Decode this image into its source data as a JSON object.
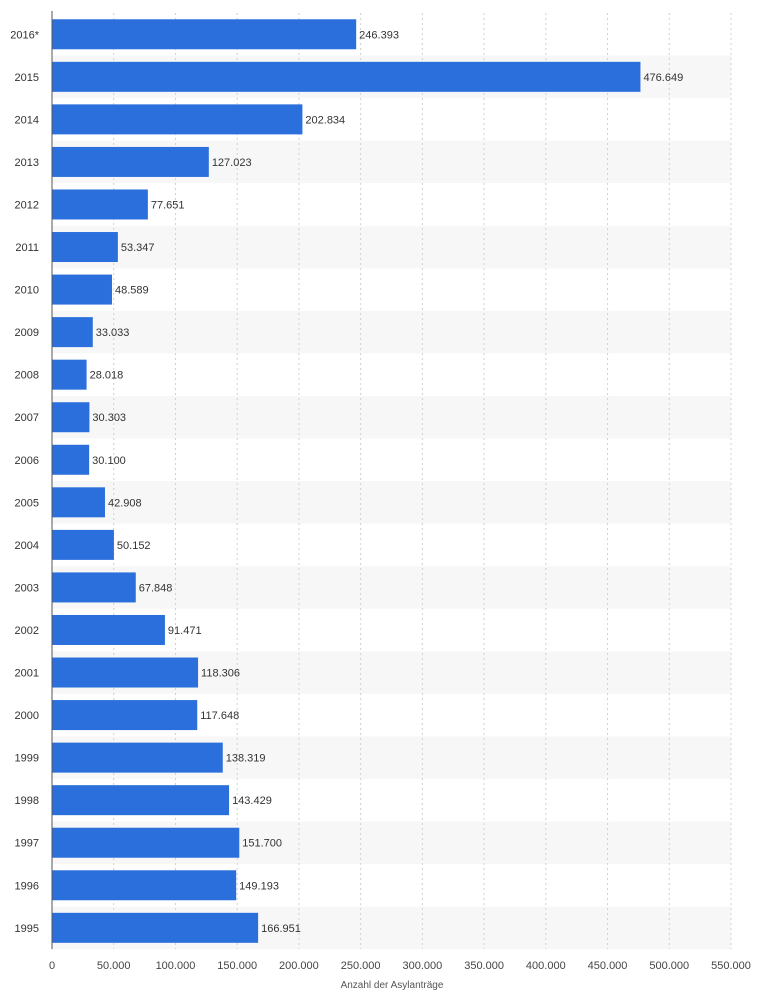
{
  "chart_data": {
    "type": "bar",
    "orientation": "horizontal",
    "categories": [
      "2016*",
      "2015",
      "2014",
      "2013",
      "2012",
      "2011",
      "2010",
      "2009",
      "2008",
      "2007",
      "2006",
      "2005",
      "2004",
      "2003",
      "2002",
      "2001",
      "2000",
      "1999",
      "1998",
      "1997",
      "1996",
      "1995"
    ],
    "values": [
      246393,
      476649,
      202834,
      127023,
      77651,
      53347,
      48589,
      33033,
      28018,
      30303,
      30100,
      42908,
      50152,
      67848,
      91471,
      118306,
      117648,
      138319,
      143429,
      151700,
      149193,
      166951
    ],
    "value_labels": [
      "246.393",
      "476.649",
      "202.834",
      "127.023",
      "77.651",
      "53.347",
      "48.589",
      "33.033",
      "28.018",
      "30.303",
      "30.100",
      "42.908",
      "50.152",
      "67.848",
      "91.471",
      "118.306",
      "117.648",
      "138.319",
      "143.429",
      "151.700",
      "149.193",
      "166.951"
    ],
    "xlabel": "Anzahl der Asylanträge",
    "ylabel": "",
    "xlim": [
      0,
      550000
    ],
    "xticks": [
      0,
      50000,
      100000,
      150000,
      200000,
      250000,
      300000,
      350000,
      400000,
      450000,
      500000,
      550000
    ],
    "xtick_labels": [
      "0",
      "50.000",
      "100.000",
      "150.000",
      "200.000",
      "250.000",
      "300.000",
      "350.000",
      "400.000",
      "450.000",
      "500.000",
      "550.000"
    ],
    "grid": true,
    "legend": "none",
    "bar_color": "#2a6fdb",
    "stripe_color": "#f7f7f7"
  }
}
